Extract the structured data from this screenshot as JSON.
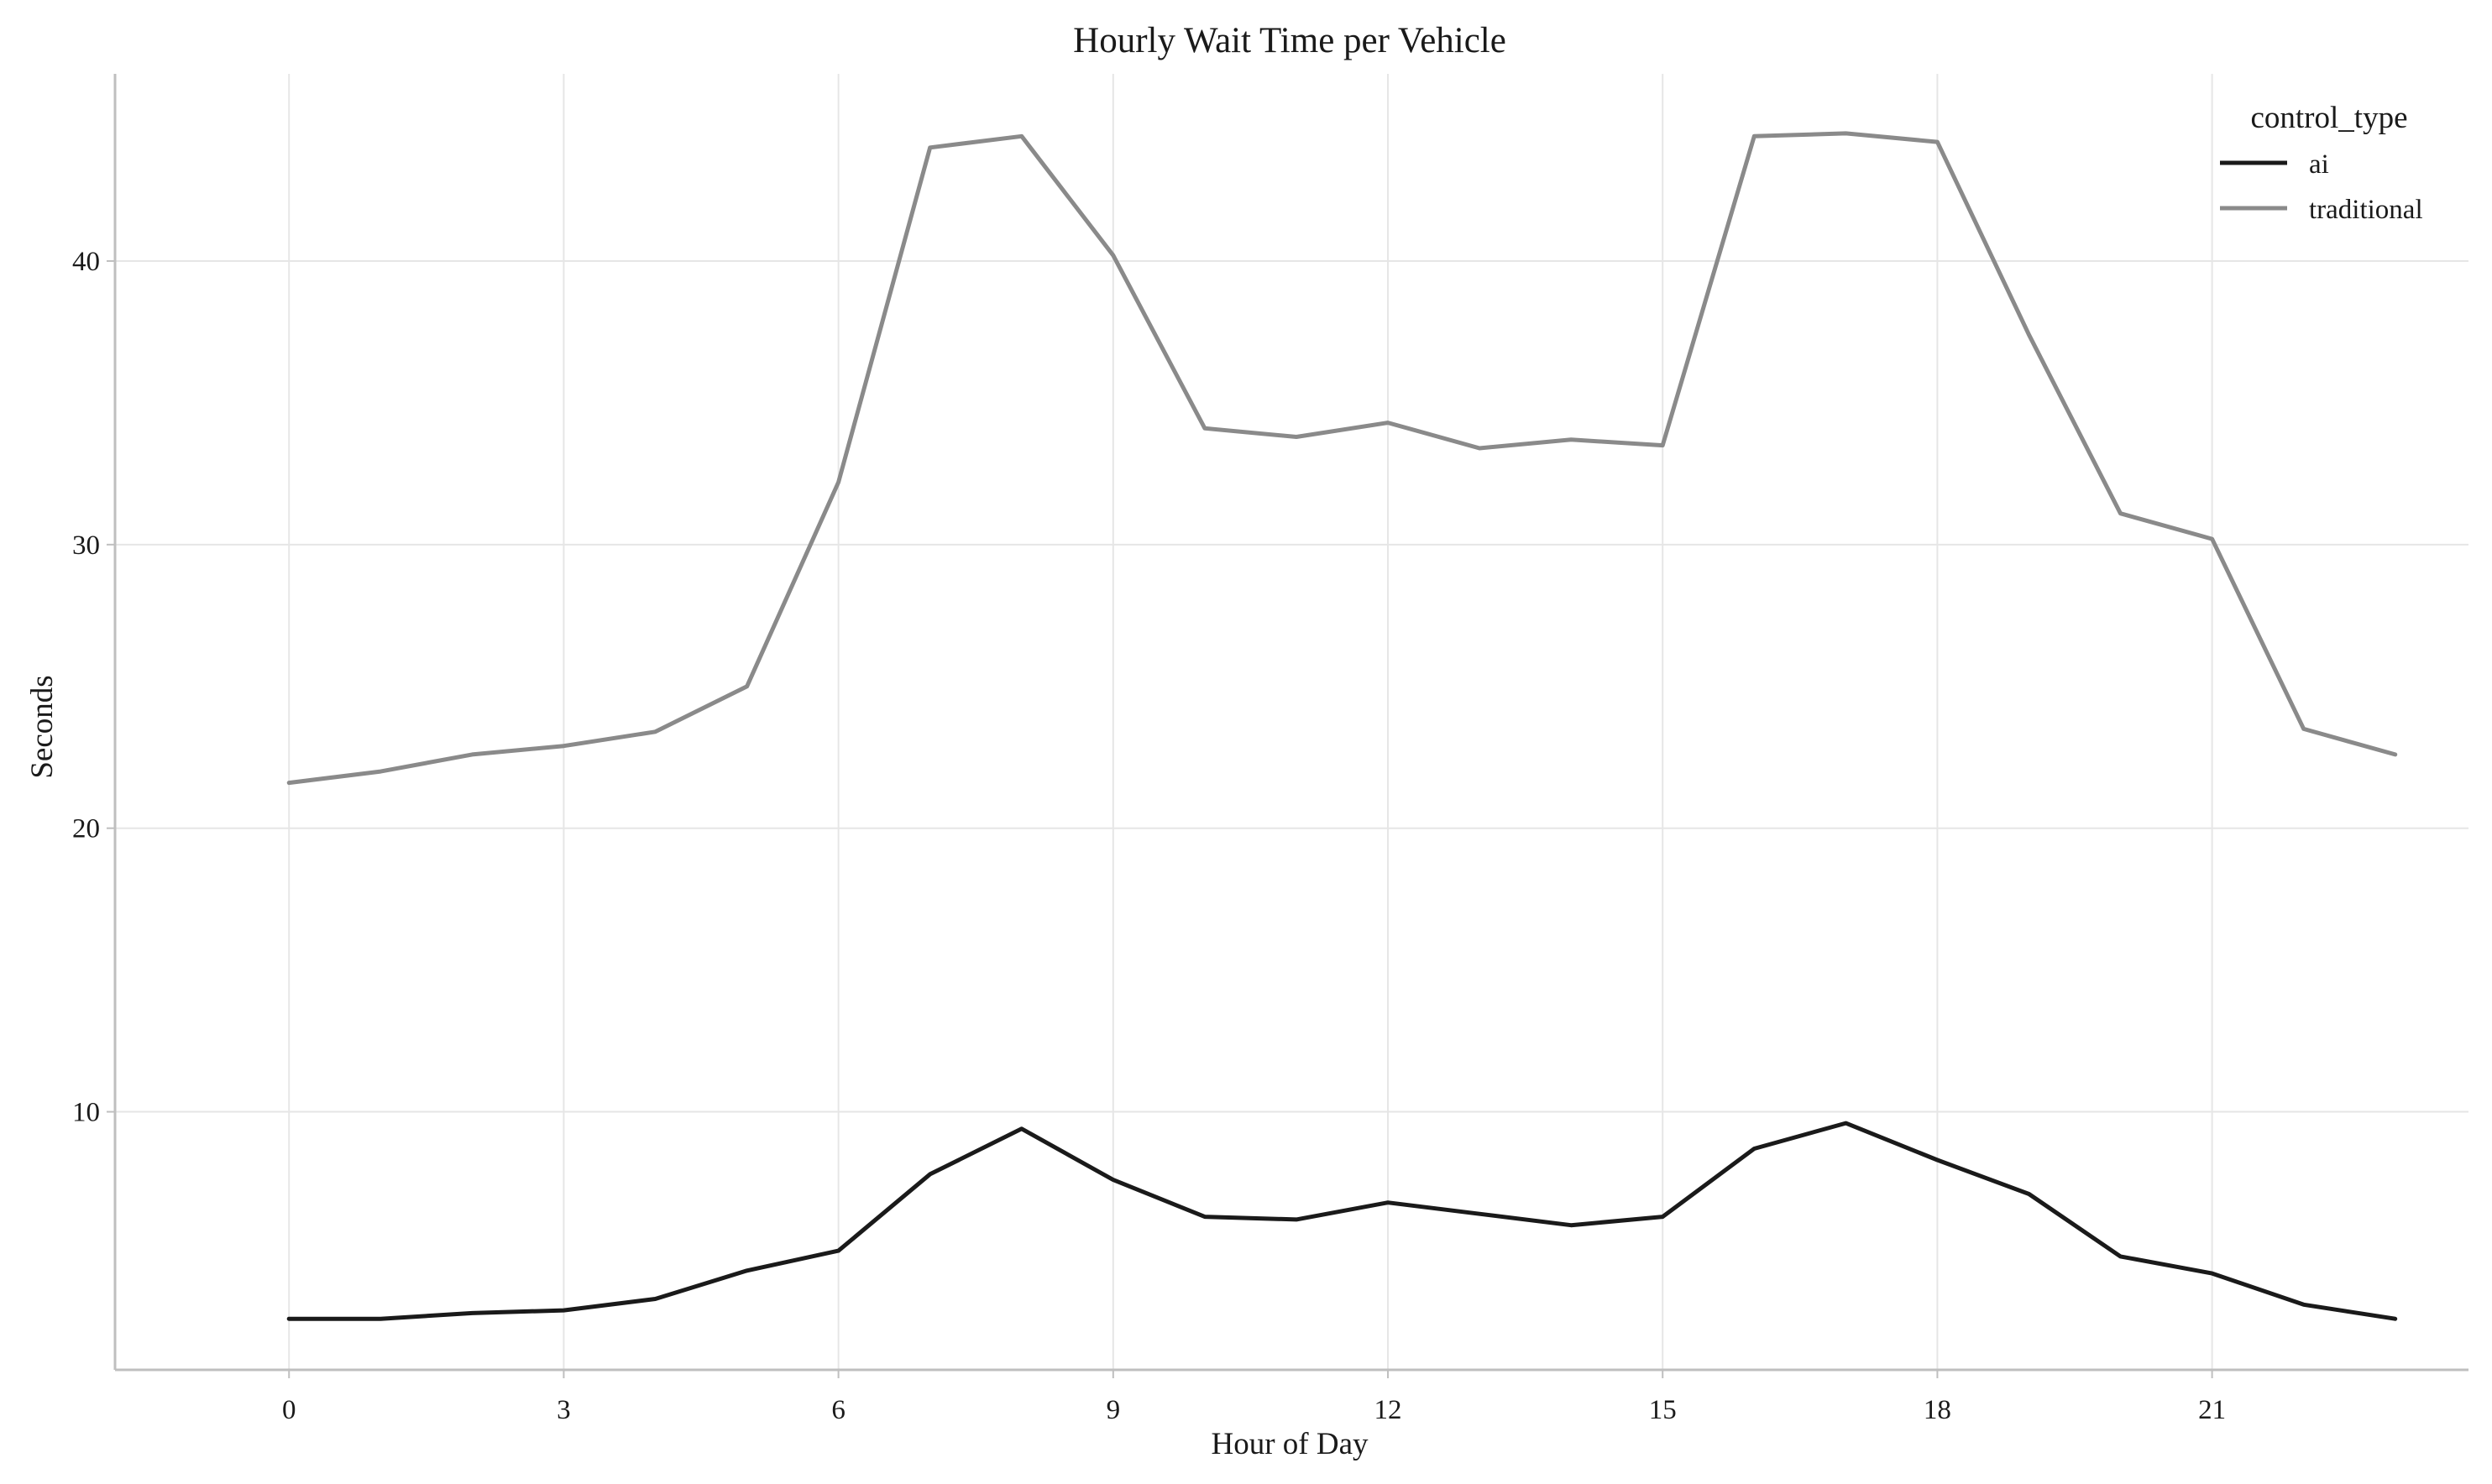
{
  "chart_data": {
    "type": "line",
    "title": "Hourly Wait Time per Vehicle",
    "xlabel": "Hour of Day",
    "ylabel": "Seconds",
    "x": [
      0,
      1,
      2,
      3,
      4,
      5,
      6,
      7,
      8,
      9,
      10,
      11,
      12,
      13,
      14,
      15,
      16,
      17,
      18,
      19,
      20,
      21,
      22,
      23
    ],
    "xticks": [
      0,
      3,
      6,
      9,
      12,
      15,
      18,
      21
    ],
    "yticks": [
      10,
      20,
      30,
      40
    ],
    "xlim": [
      -1.9,
      23.8
    ],
    "ylim": [
      0.9,
      46.6
    ],
    "grid": true,
    "legend": {
      "title": "control_type",
      "placement": "top-right"
    },
    "series": [
      {
        "name": "ai",
        "color": "#1a1a1a",
        "values": [
          2.7,
          2.7,
          2.9,
          3.0,
          3.4,
          4.4,
          5.1,
          7.8,
          9.4,
          7.6,
          6.3,
          6.2,
          6.8,
          6.4,
          6.0,
          6.3,
          8.7,
          9.6,
          8.3,
          7.1,
          4.9,
          4.3,
          3.2,
          2.7
        ]
      },
      {
        "name": "traditional",
        "color": "#8a8a8a",
        "values": [
          21.6,
          22.0,
          22.6,
          22.9,
          23.4,
          25.0,
          32.2,
          44.0,
          44.4,
          40.2,
          34.1,
          33.8,
          34.3,
          33.4,
          33.7,
          33.5,
          44.4,
          44.5,
          44.2,
          37.4,
          31.1,
          30.2,
          23.5,
          22.6
        ]
      }
    ]
  }
}
